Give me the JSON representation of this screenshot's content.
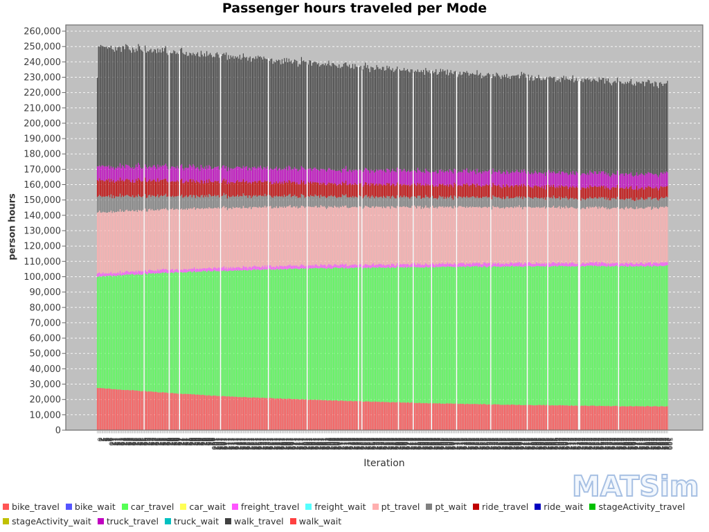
{
  "title": "Passenger hours traveled per Mode",
  "watermark": "MATSim",
  "chart_data": {
    "type": "bar",
    "variant": "stacked",
    "title": "Passenger hours traveled per Mode",
    "xlabel": "Iteration",
    "ylabel": "person hours",
    "ylim": [
      0,
      260000
    ],
    "ytick_step": 10000,
    "x": {
      "min": 0,
      "max": 500,
      "step": 1,
      "label_rotation_deg": 90
    },
    "plot_bg": "#c0c0c0",
    "grid_color": "#ffffff",
    "grid_style": "dashed",
    "legend_position": "bottom",
    "sample_iterations": [
      0,
      1,
      20,
      40,
      60,
      80,
      100,
      120,
      140,
      160,
      180,
      200,
      220,
      240,
      260,
      280,
      300,
      320,
      340,
      360,
      380,
      400,
      420,
      440,
      460,
      480,
      500
    ],
    "series": [
      {
        "name": "bike_travel",
        "color": "#FF5555",
        "jitter": 250,
        "values": [
          27500,
          27500,
          26500,
          25500,
          24500,
          23500,
          22500,
          21800,
          21200,
          20600,
          20000,
          19500,
          19000,
          18600,
          18200,
          17800,
          17500,
          17200,
          16900,
          16600,
          16400,
          16200,
          16000,
          15800,
          15700,
          15600,
          15500
        ]
      },
      {
        "name": "bike_wait",
        "color": "#5555FF",
        "jitter": 0,
        "values": 0
      },
      {
        "name": "car_travel",
        "color": "#55FF55",
        "jitter": 400,
        "values": [
          72500,
          72500,
          74500,
          76300,
          78000,
          79600,
          81100,
          82300,
          83300,
          84300,
          85200,
          86000,
          86700,
          87300,
          87900,
          88500,
          88900,
          89300,
          89700,
          90100,
          90400,
          90650,
          90900,
          91150,
          91300,
          91400,
          91500
        ]
      },
      {
        "name": "car_wait",
        "color": "#FFFF55",
        "jitter": 0,
        "values": 0
      },
      {
        "name": "freight_travel",
        "color": "#FF55FF",
        "jitter": 600,
        "values": 2000
      },
      {
        "name": "freight_wait",
        "color": "#55FFFF",
        "jitter": 0,
        "values": 0
      },
      {
        "name": "pt_travel",
        "color": "#FFAFAF",
        "jitter": 500,
        "values": [
          40000,
          40000,
          39800,
          39600,
          39400,
          39200,
          39000,
          38800,
          38600,
          38400,
          38200,
          38000,
          37800,
          37600,
          37400,
          37200,
          37000,
          36800,
          36600,
          36500,
          36400,
          36300,
          36200,
          36100,
          36050,
          36000,
          36000
        ]
      },
      {
        "name": "pt_wait",
        "color": "#808080",
        "jitter": 700,
        "values": [
          10500,
          10500,
          9800,
          9200,
          8700,
          8300,
          8000,
          7700,
          7400,
          7200,
          7000,
          6900,
          6800,
          6700,
          6600,
          6500,
          6450,
          6400,
          6350,
          6300,
          6250,
          6200,
          6150,
          6100,
          6050,
          6000,
          6000
        ]
      },
      {
        "name": "ride_travel",
        "color": "#C00000",
        "jitter": 700,
        "values": [
          10500,
          10500,
          10300,
          10100,
          9900,
          9700,
          9500,
          9300,
          9100,
          8900,
          8700,
          8500,
          8300,
          8200,
          8100,
          8000,
          7900,
          7800,
          7700,
          7600,
          7500,
          7400,
          7300,
          7200,
          7100,
          7050,
          7000
        ]
      },
      {
        "name": "ride_wait",
        "color": "#0000C0",
        "jitter": 0,
        "values": 0
      },
      {
        "name": "stageActivity_travel",
        "color": "#00C000",
        "jitter": 0,
        "values": 0
      },
      {
        "name": "stageActivity_wait",
        "color": "#C0C000",
        "jitter": 0,
        "values": 0
      },
      {
        "name": "truck_travel",
        "color": "#C000C0",
        "jitter": 800,
        "values": 9000
      },
      {
        "name": "truck_wait",
        "color": "#00C0C0",
        "jitter": 0,
        "values": 0
      },
      {
        "name": "walk_travel",
        "color": "#404040",
        "jitter": 1600,
        "values": [
          59000,
          78500,
          77200,
          76100,
          75100,
          74200,
          73400,
          72300,
          71300,
          70300,
          69400,
          68500,
          67700,
          66800,
          66000,
          65300,
          64700,
          64000,
          63300,
          62700,
          62100,
          61550,
          61000,
          60450,
          59850,
          59250,
          58500
        ]
      },
      {
        "name": "walk_wait",
        "color": "#FF4040",
        "jitter": 0,
        "values": 0
      }
    ],
    "legend": {
      "rows": [
        [
          "bike_travel",
          "bike_wait",
          "car_travel",
          "car_wait",
          "freight_travel",
          "freight_wait",
          "pt_travel",
          "pt_wait",
          "ride_travel",
          "ride_wait",
          "stageActivity_travel"
        ],
        [
          "stageActivity_wait",
          "truck_travel",
          "truck_wait",
          "walk_travel",
          "walk_wait"
        ]
      ]
    }
  }
}
